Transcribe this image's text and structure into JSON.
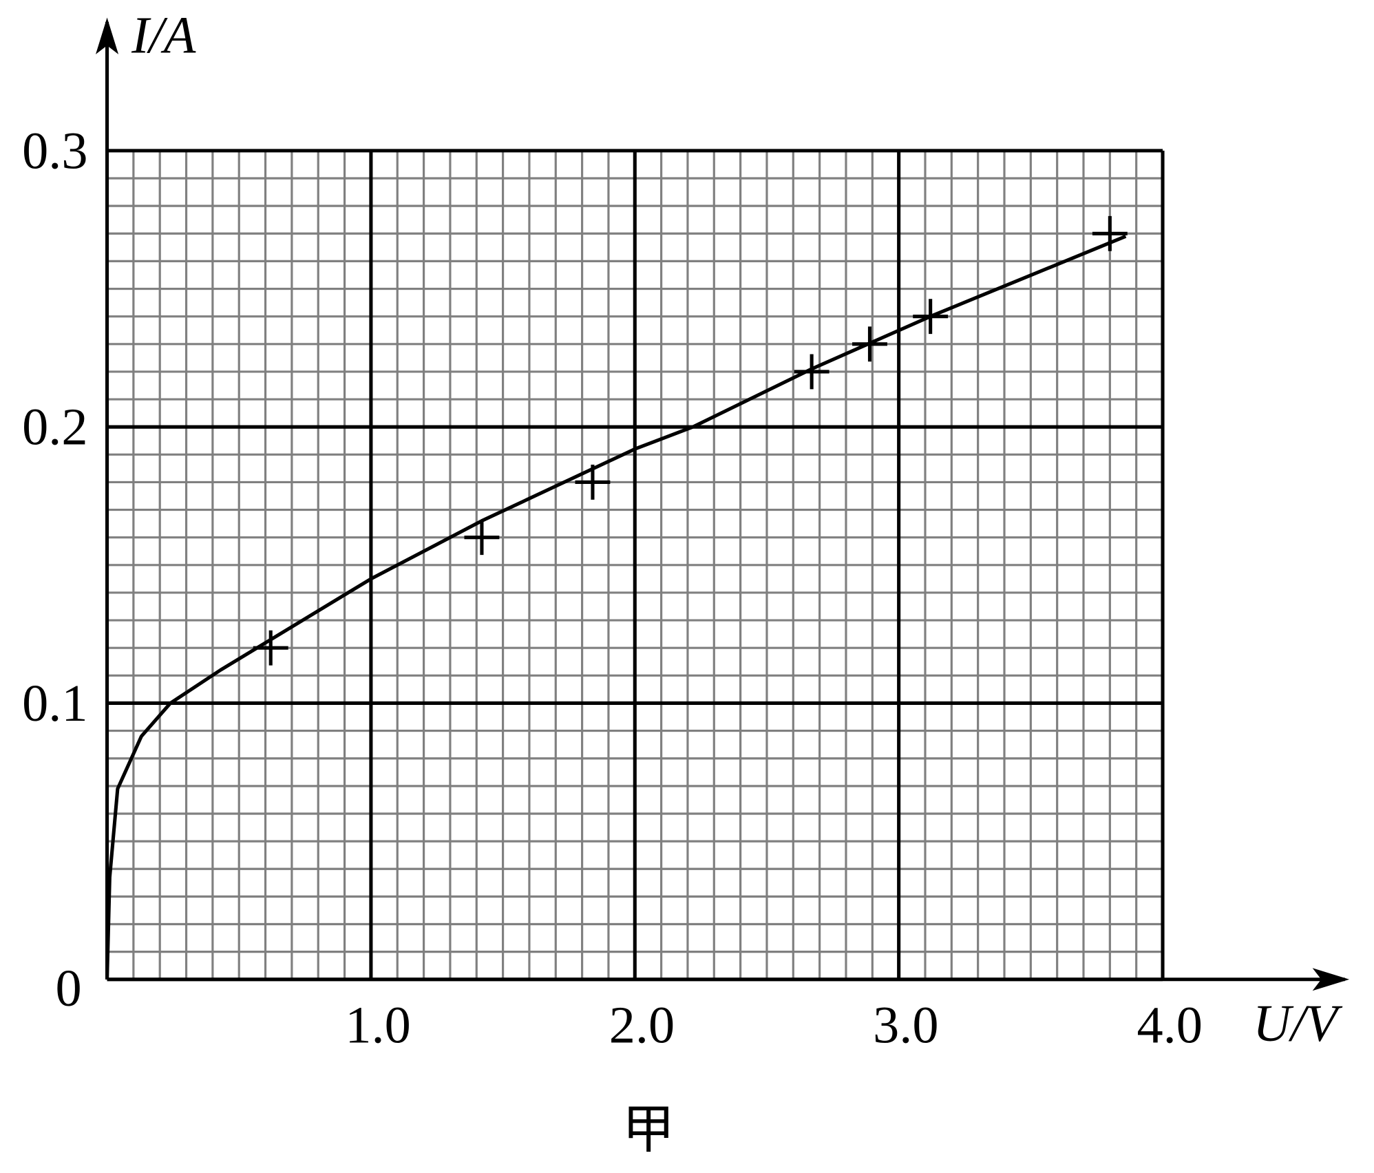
{
  "chart_data": {
    "type": "scatter",
    "x_label": "U/V",
    "y_label": "I/A",
    "caption": "甲",
    "xlim": [
      0,
      4
    ],
    "ylim": [
      0,
      0.3
    ],
    "xticks": [
      {
        "value": 1,
        "label": "1.0"
      },
      {
        "value": 2,
        "label": "2.0"
      },
      {
        "value": 3,
        "label": "3.0"
      },
      {
        "value": 4,
        "label": "4.0"
      }
    ],
    "yticks": [
      0,
      0.1,
      0.2,
      0.3
    ],
    "grid": true,
    "color": "#000000",
    "points": {
      "x": [
        0.62,
        1.42,
        1.84,
        2.67,
        2.89,
        3.12,
        3.8
      ],
      "y": [
        0.12,
        0.16,
        0.18,
        0.22,
        0.23,
        0.24,
        0.27
      ]
    },
    "curve": {
      "x": [
        0,
        0.01,
        0.04,
        0.13,
        0.24,
        0.43,
        0.62,
        1.0,
        1.42,
        2.0,
        2.22,
        2.67,
        3.12,
        3.86
      ],
      "y": [
        0,
        0.037,
        0.069,
        0.088,
        0.1,
        0.112,
        0.123,
        0.145,
        0.166,
        0.192,
        0.2,
        0.221,
        0.24,
        0.269
      ]
    }
  }
}
